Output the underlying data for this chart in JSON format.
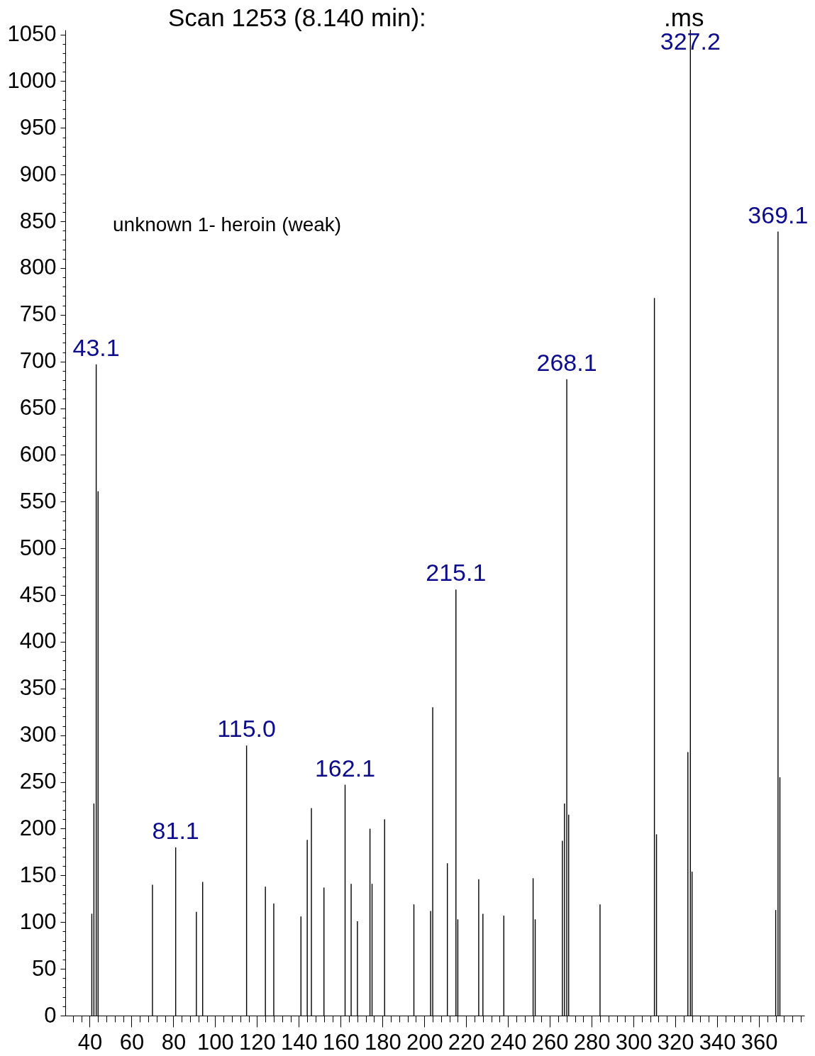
{
  "chart_data": {
    "type": "bar",
    "title": "Scan 1253 (8.140 min):",
    "subtitle": ".ms",
    "annotations": [
      "unknown 1- heroin (weak)",
      {
        "text": "43.1",
        "x": 43.1,
        "y": 697
      },
      {
        "text": "81.1",
        "x": 81.1,
        "y": 180
      },
      {
        "text": "115.0",
        "x": 115.0,
        "y": 289
      },
      {
        "text": "162.1",
        "x": 162.1,
        "y": 247
      },
      {
        "text": "215.1",
        "x": 215.1,
        "y": 456
      },
      {
        "text": "268.1",
        "x": 268.1,
        "y": 681
      },
      {
        "text": "327.2",
        "x": 327.2,
        "y": 1055
      },
      {
        "text": "369.1",
        "x": 369.1,
        "y": 839
      }
    ],
    "x": [
      41,
      42,
      43.1,
      44,
      70,
      81.1,
      91,
      94,
      115.0,
      124,
      128,
      141,
      144,
      146,
      152,
      162.1,
      165,
      168,
      174,
      175,
      181,
      195,
      203,
      204,
      211,
      215.1,
      216,
      226,
      228,
      238,
      252,
      253,
      266,
      267,
      268.1,
      269,
      284,
      310,
      311,
      326,
      327.2,
      328,
      368,
      369.1,
      370
    ],
    "values": [
      109,
      227,
      697,
      561,
      140,
      180,
      111,
      143,
      289,
      138,
      120,
      106,
      188,
      222,
      137,
      247,
      141,
      101,
      200,
      141,
      210,
      119,
      112,
      330,
      163,
      456,
      103,
      146,
      109,
      107,
      147,
      103,
      187,
      227,
      681,
      215,
      119,
      768,
      194,
      282,
      1055,
      154,
      113,
      839,
      255
    ],
    "color": "#000000",
    "xlim": [
      30,
      380
    ],
    "xticks": [
      {
        "value": 32,
        "label": null
      },
      {
        "value": 36,
        "label": null
      },
      40,
      {
        "value": 44,
        "label": null
      },
      {
        "value": 48,
        "label": null
      },
      {
        "value": 52,
        "label": null
      },
      {
        "value": 56,
        "label": null
      },
      60,
      {
        "value": 64,
        "label": null
      },
      {
        "value": 68,
        "label": null
      },
      {
        "value": 72,
        "label": null
      },
      {
        "value": 76,
        "label": null
      },
      80,
      {
        "value": 84,
        "label": null
      },
      {
        "value": 88,
        "label": null
      },
      {
        "value": 92,
        "label": null
      },
      {
        "value": 96,
        "label": null
      },
      100,
      {
        "value": 104,
        "label": null
      },
      {
        "value": 108,
        "label": null
      },
      {
        "value": 112,
        "label": null
      },
      {
        "value": 116,
        "label": null
      },
      120,
      {
        "value": 124,
        "label": null
      },
      {
        "value": 128,
        "label": null
      },
      {
        "value": 132,
        "label": null
      },
      {
        "value": 136,
        "label": null
      },
      140,
      {
        "value": 144,
        "label": null
      },
      {
        "value": 148,
        "label": null
      },
      {
        "value": 152,
        "label": null
      },
      {
        "value": 156,
        "label": null
      },
      160,
      {
        "value": 164,
        "label": null
      },
      {
        "value": 168,
        "label": null
      },
      {
        "value": 172,
        "label": null
      },
      {
        "value": 176,
        "label": null
      },
      180,
      {
        "value": 184,
        "label": null
      },
      {
        "value": 188,
        "label": null
      },
      {
        "value": 192,
        "label": null
      },
      {
        "value": 196,
        "label": null
      },
      200,
      {
        "value": 204,
        "label": null
      },
      {
        "value": 208,
        "label": null
      },
      {
        "value": 212,
        "label": null
      },
      {
        "value": 216,
        "label": null
      },
      220,
      {
        "value": 224,
        "label": null
      },
      {
        "value": 228,
        "label": null
      },
      {
        "value": 232,
        "label": null
      },
      {
        "value": 236,
        "label": null
      },
      240,
      {
        "value": 244,
        "label": null
      },
      {
        "value": 248,
        "label": null
      },
      {
        "value": 252,
        "label": null
      },
      {
        "value": 256,
        "label": null
      },
      260,
      {
        "value": 264,
        "label": null
      },
      {
        "value": 268,
        "label": null
      },
      {
        "value": 272,
        "label": null
      },
      {
        "value": 276,
        "label": null
      },
      280,
      {
        "value": 284,
        "label": null
      },
      {
        "value": 288,
        "label": null
      },
      {
        "value": 292,
        "label": null
      },
      {
        "value": 296,
        "label": null
      },
      300,
      {
        "value": 304,
        "label": null
      },
      {
        "value": 308,
        "label": null
      },
      {
        "value": 312,
        "label": null
      },
      {
        "value": 316,
        "label": null
      },
      320,
      {
        "value": 324,
        "label": null
      },
      {
        "value": 328,
        "label": null
      },
      {
        "value": 332,
        "label": null
      },
      {
        "value": 336,
        "label": null
      },
      340,
      {
        "value": 344,
        "label": null
      },
      {
        "value": 348,
        "label": null
      },
      {
        "value": 352,
        "label": null
      },
      {
        "value": 356,
        "label": null
      },
      360,
      {
        "value": 364,
        "label": null
      },
      {
        "value": 368,
        "label": null
      },
      {
        "value": 372,
        "label": null
      },
      {
        "value": 376,
        "label": null
      },
      {
        "value": 380,
        "label": null
      }
    ],
    "ylim": [
      0,
      1055
    ],
    "yticks": [
      0,
      {
        "value": 10,
        "label": null
      },
      {
        "value": 20,
        "label": null
      },
      {
        "value": 30,
        "label": null
      },
      {
        "value": 40,
        "label": null
      },
      50,
      {
        "value": 60,
        "label": null
      },
      {
        "value": 70,
        "label": null
      },
      {
        "value": 80,
        "label": null
      },
      {
        "value": 90,
        "label": null
      },
      100,
      {
        "value": 110,
        "label": null
      },
      {
        "value": 120,
        "label": null
      },
      {
        "value": 130,
        "label": null
      },
      {
        "value": 140,
        "label": null
      },
      150,
      {
        "value": 160,
        "label": null
      },
      {
        "value": 170,
        "label": null
      },
      {
        "value": 180,
        "label": null
      },
      {
        "value": 190,
        "label": null
      },
      200,
      {
        "value": 210,
        "label": null
      },
      {
        "value": 220,
        "label": null
      },
      {
        "value": 230,
        "label": null
      },
      {
        "value": 240,
        "label": null
      },
      250,
      {
        "value": 260,
        "label": null
      },
      {
        "value": 270,
        "label": null
      },
      {
        "value": 280,
        "label": null
      },
      {
        "value": 290,
        "label": null
      },
      300,
      {
        "value": 310,
        "label": null
      },
      {
        "value": 320,
        "label": null
      },
      {
        "value": 330,
        "label": null
      },
      {
        "value": 340,
        "label": null
      },
      350,
      {
        "value": 360,
        "label": null
      },
      {
        "value": 370,
        "label": null
      },
      {
        "value": 380,
        "label": null
      },
      {
        "value": 390,
        "label": null
      },
      400,
      {
        "value": 410,
        "label": null
      },
      {
        "value": 420,
        "label": null
      },
      {
        "value": 430,
        "label": null
      },
      {
        "value": 440,
        "label": null
      },
      450,
      {
        "value": 460,
        "label": null
      },
      {
        "value": 470,
        "label": null
      },
      {
        "value": 480,
        "label": null
      },
      {
        "value": 490,
        "label": null
      },
      500,
      {
        "value": 510,
        "label": null
      },
      {
        "value": 520,
        "label": null
      },
      {
        "value": 530,
        "label": null
      },
      {
        "value": 540,
        "label": null
      },
      550,
      {
        "value": 560,
        "label": null
      },
      {
        "value": 570,
        "label": null
      },
      {
        "value": 580,
        "label": null
      },
      {
        "value": 590,
        "label": null
      },
      600,
      {
        "value": 610,
        "label": null
      },
      {
        "value": 620,
        "label": null
      },
      {
        "value": 630,
        "label": null
      },
      {
        "value": 640,
        "label": null
      },
      650,
      {
        "value": 660,
        "label": null
      },
      {
        "value": 670,
        "label": null
      },
      {
        "value": 680,
        "label": null
      },
      {
        "value": 690,
        "label": null
      },
      700,
      {
        "value": 710,
        "label": null
      },
      {
        "value": 720,
        "label": null
      },
      {
        "value": 730,
        "label": null
      },
      {
        "value": 740,
        "label": null
      },
      750,
      {
        "value": 760,
        "label": null
      },
      {
        "value": 770,
        "label": null
      },
      {
        "value": 780,
        "label": null
      },
      {
        "value": 790,
        "label": null
      },
      800,
      {
        "value": 810,
        "label": null
      },
      {
        "value": 820,
        "label": null
      },
      {
        "value": 830,
        "label": null
      },
      {
        "value": 840,
        "label": null
      },
      850,
      {
        "value": 860,
        "label": null
      },
      {
        "value": 870,
        "label": null
      },
      {
        "value": 880,
        "label": null
      },
      {
        "value": 890,
        "label": null
      },
      900,
      {
        "value": 910,
        "label": null
      },
      {
        "value": 920,
        "label": null
      },
      {
        "value": 930,
        "label": null
      },
      {
        "value": 940,
        "label": null
      },
      950,
      {
        "value": 960,
        "label": null
      },
      {
        "value": 970,
        "label": null
      },
      {
        "value": 980,
        "label": null
      },
      {
        "value": 990,
        "label": null
      },
      1000,
      {
        "value": 1010,
        "label": null
      },
      {
        "value": 1020,
        "label": null
      },
      {
        "value": 1030,
        "label": null
      },
      {
        "value": 1040,
        "label": null
      },
      1050
    ]
  }
}
